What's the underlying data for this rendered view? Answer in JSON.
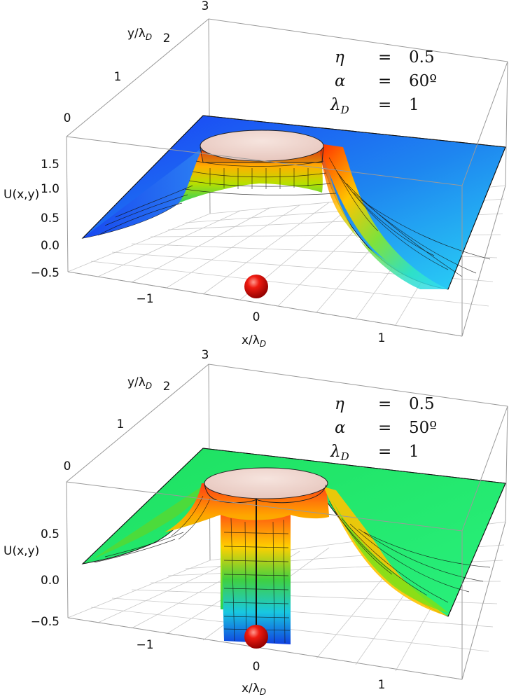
{
  "chart_data": [
    {
      "type": "surface-3d",
      "zlabel": "U(x,y)",
      "xlabel": "x/λ",
      "xlabel_sub": "D",
      "ylabel": "y/λ",
      "ylabel_sub": "D",
      "x_ticks": [
        "−1",
        "0",
        "1"
      ],
      "y_ticks": [
        "0",
        "1",
        "2",
        "3"
      ],
      "z_ticks": [
        "−0.5",
        "0.0",
        "0.5",
        "1.0",
        "1.5"
      ],
      "xlim": [
        -1.6,
        1.6
      ],
      "ylim": [
        0,
        3
      ],
      "zlim": [
        -0.5,
        1.9
      ],
      "particle_position": {
        "x": 0,
        "y": 0
      },
      "parameters": [
        {
          "symbol": "η",
          "sub": "",
          "eq": "=",
          "value": "0.5"
        },
        {
          "symbol": "α",
          "sub": "",
          "eq": "=",
          "value": "60º"
        },
        {
          "symbol": "λ",
          "sub": "D",
          "eq": "=",
          "value": "1"
        }
      ],
      "colors": {
        "surface_low": "#0a3cff",
        "surface_high": "#ff2a00",
        "plateau": "#f1d6d0",
        "particle": "#e01010"
      }
    },
    {
      "type": "surface-3d",
      "zlabel": "U(x,y)",
      "xlabel": "x/λ",
      "xlabel_sub": "D",
      "ylabel": "y/λ",
      "ylabel_sub": "D",
      "x_ticks": [
        "−1",
        "0",
        "1"
      ],
      "y_ticks": [
        "0",
        "1",
        "2",
        "3"
      ],
      "z_ticks": [
        "−0.5",
        "0.0",
        "0.5"
      ],
      "xlim": [
        -1.6,
        1.6
      ],
      "ylim": [
        0,
        3
      ],
      "zlim": [
        -0.5,
        1.0
      ],
      "particle_position": {
        "x": 0,
        "y": 0
      },
      "parameters": [
        {
          "symbol": "η",
          "sub": "",
          "eq": "=",
          "value": "0.5"
        },
        {
          "symbol": "α",
          "sub": "",
          "eq": "=",
          "value": "50º"
        },
        {
          "symbol": "λ",
          "sub": "D",
          "eq": "=",
          "value": "1"
        }
      ],
      "colors": {
        "surface_low": "#0a3cff",
        "surface_high": "#ff2a00",
        "plateau": "#f1d6d0",
        "particle": "#e01010"
      }
    }
  ]
}
